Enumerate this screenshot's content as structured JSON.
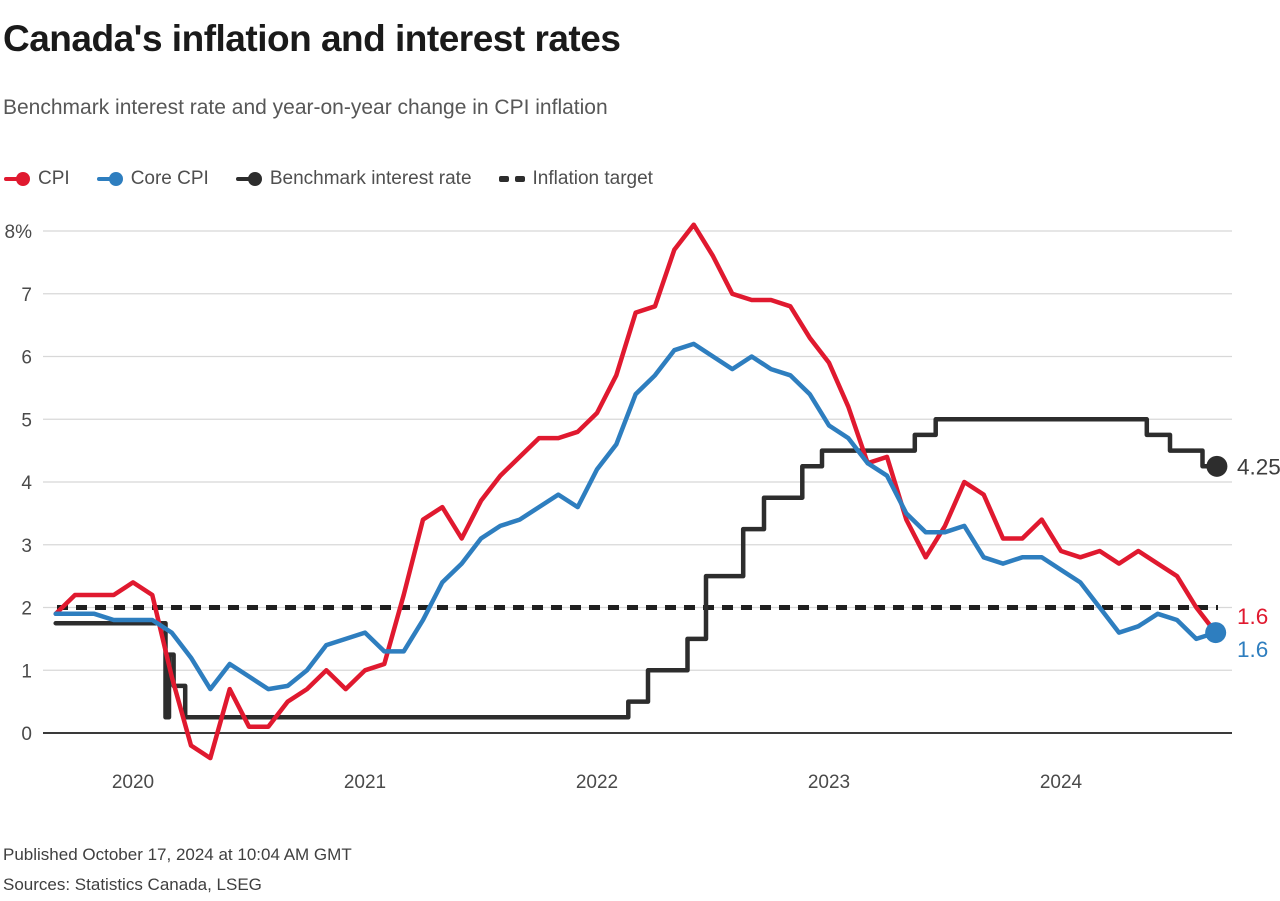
{
  "title": "Canada's inflation and interest rates",
  "subtitle": "Benchmark interest rate and year-on-year change in CPI inflation",
  "legend": {
    "items": [
      {
        "id": "cpi",
        "label": "CPI"
      },
      {
        "id": "core-cpi",
        "label": "Core CPI"
      },
      {
        "id": "benchmark",
        "label": "Benchmark interest rate"
      },
      {
        "id": "target",
        "label": "Inflation target"
      }
    ]
  },
  "colors": {
    "cpi": "#e0192f",
    "core_cpi": "#2e7ebf",
    "benchmark": "#2d2d2d",
    "target": "#1f1f1f",
    "grid": "#d8d8d8",
    "axis": "#3a3a3a",
    "tick_text": "#4a4a4a",
    "label_text": "#3d3d3d"
  },
  "footer": {
    "published": "Published October 17, 2024 at 10:04 AM GMT",
    "sources": "Sources: Statistics Canada, LSEG"
  },
  "chart_data": {
    "type": "line",
    "title": "Canada's inflation and interest rates",
    "subtitle": "Benchmark interest rate and year-on-year change in CPI inflation",
    "ylabel": "",
    "xlabel": "",
    "ylim": [
      0,
      8
    ],
    "y_ticks": [
      0,
      1,
      2,
      3,
      4,
      5,
      6,
      7,
      8
    ],
    "y_top_tick_label": "8%",
    "x_tick_years": [
      "2020",
      "2021",
      "2022",
      "2023",
      "2024"
    ],
    "grid": true,
    "legend_position": "top",
    "monthly_series_start": {
      "year": 2019,
      "month": 9
    },
    "series": [
      {
        "name": "CPI",
        "unit": "% y/y",
        "values": [
          1.9,
          2.2,
          2.2,
          2.2,
          2.4,
          2.2,
          0.9,
          -0.2,
          -0.4,
          0.7,
          0.1,
          0.1,
          0.5,
          0.7,
          1.0,
          0.7,
          1.0,
          1.1,
          2.2,
          3.4,
          3.6,
          3.1,
          3.7,
          4.1,
          4.4,
          4.7,
          4.7,
          4.8,
          5.1,
          5.7,
          6.7,
          6.8,
          7.7,
          8.1,
          7.6,
          7.0,
          6.9,
          6.9,
          6.8,
          6.3,
          5.9,
          5.2,
          4.3,
          4.4,
          3.4,
          2.8,
          3.3,
          4.0,
          3.8,
          3.1,
          3.1,
          3.4,
          2.9,
          2.8,
          2.9,
          2.7,
          2.9,
          2.7,
          2.5,
          2.0,
          1.6
        ]
      },
      {
        "name": "Core CPI",
        "unit": "% y/y",
        "values": [
          1.9,
          1.9,
          1.9,
          1.8,
          1.8,
          1.8,
          1.6,
          1.2,
          0.7,
          1.1,
          0.9,
          0.7,
          0.75,
          1.0,
          1.4,
          1.5,
          1.6,
          1.3,
          1.3,
          1.8,
          2.4,
          2.7,
          3.1,
          3.3,
          3.4,
          3.6,
          3.8,
          3.6,
          4.2,
          4.6,
          5.4,
          5.7,
          6.1,
          6.2,
          6.0,
          5.8,
          6.0,
          5.8,
          5.7,
          5.4,
          4.9,
          4.7,
          4.3,
          4.1,
          3.5,
          3.2,
          3.2,
          3.3,
          2.8,
          2.7,
          2.8,
          2.8,
          2.6,
          2.4,
          2.0,
          1.6,
          1.7,
          1.9,
          1.8,
          1.5,
          1.6
        ]
      }
    ],
    "benchmark_rate_steps": [
      [
        2019.667,
        1.75
      ],
      [
        2020.14,
        0.25
      ],
      [
        2020.155,
        1.25
      ],
      [
        2020.175,
        0.75
      ],
      [
        2020.225,
        0.25
      ],
      [
        2022.135,
        0.5
      ],
      [
        2022.22,
        1.0
      ],
      [
        2022.39,
        1.5
      ],
      [
        2022.47,
        2.5
      ],
      [
        2022.63,
        3.25
      ],
      [
        2022.72,
        3.75
      ],
      [
        2022.885,
        4.25
      ],
      [
        2022.97,
        4.5
      ],
      [
        2023.37,
        4.75
      ],
      [
        2023.46,
        5.0
      ],
      [
        2024.37,
        4.75
      ],
      [
        2024.47,
        4.5
      ],
      [
        2024.61,
        4.25
      ],
      [
        2024.672,
        4.25
      ]
    ],
    "inflation_target": 2,
    "end_labels": [
      {
        "series": "benchmark",
        "text": "4.25"
      },
      {
        "series": "cpi",
        "text": "1.6"
      },
      {
        "series": "core-cpi",
        "text": "1.6"
      }
    ]
  }
}
